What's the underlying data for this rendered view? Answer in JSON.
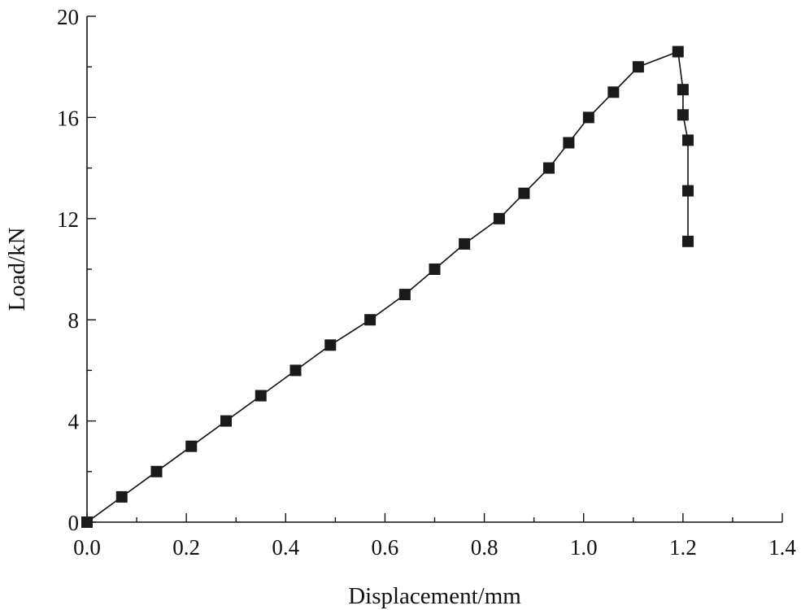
{
  "chart_data": {
    "type": "line",
    "title": "",
    "xlabel": "Displacement/mm",
    "ylabel": "Load/kN",
    "xlim": [
      0,
      1.4
    ],
    "ylim": [
      0,
      20
    ],
    "x_ticks": [
      "0.0",
      "0.2",
      "0.4",
      "0.6",
      "0.8",
      "1.0",
      "1.2",
      "1.4"
    ],
    "y_ticks": [
      "0",
      "4",
      "8",
      "12",
      "16",
      "20"
    ],
    "grid": false,
    "legend": "none",
    "marker": "square",
    "series_color": "#1a1a1a",
    "series": [
      {
        "x": [
          0.0,
          0.07,
          0.14,
          0.21,
          0.28,
          0.35,
          0.42,
          0.49,
          0.57,
          0.64,
          0.7,
          0.76,
          0.83,
          0.88,
          0.93,
          0.97,
          1.01,
          1.06,
          1.11,
          1.19,
          1.2,
          1.2,
          1.21,
          1.21,
          1.21
        ],
        "y": [
          0,
          1,
          2,
          3,
          4,
          5,
          6,
          7,
          8,
          9,
          10,
          11,
          12,
          13,
          14,
          15,
          16,
          17,
          18,
          18.6,
          17.1,
          16.1,
          15.1,
          13.1,
          11.1
        ]
      }
    ]
  }
}
